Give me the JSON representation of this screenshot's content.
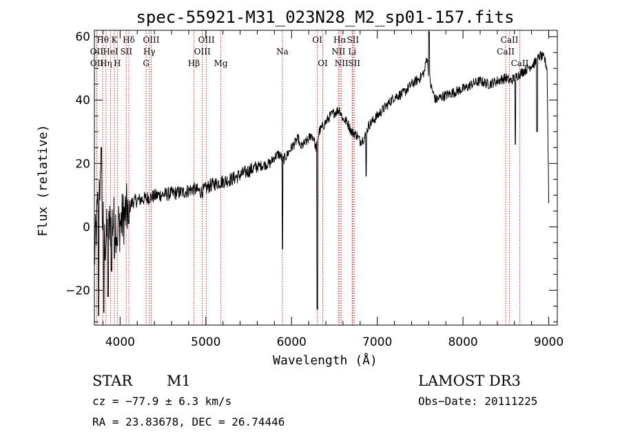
{
  "chart_data": {
    "type": "line",
    "title": "spec-55921-M31_023N28_M2_sp01-157.fits",
    "xlabel": "Wavelength (Å)",
    "ylabel": "Flux (relative)",
    "xlim": [
      3700,
      9100
    ],
    "ylim": [
      -31,
      62
    ],
    "xticks": [
      4000,
      5000,
      6000,
      7000,
      8000,
      9000
    ],
    "yticks": [
      -20,
      0,
      20,
      40,
      60
    ],
    "xtick_labels": [
      "4000",
      "5000",
      "6000",
      "7000",
      "8000",
      "9000"
    ],
    "ytick_labels": [
      "−20",
      "0",
      "20",
      "40",
      "60"
    ],
    "spectrum_anchors": {
      "x": [
        3700,
        3760,
        3820,
        3900,
        3980,
        4060,
        4150,
        4300,
        4450,
        4600,
        4750,
        4850,
        4950,
        5050,
        5150,
        5300,
        5450,
        5600,
        5750,
        5800,
        5850,
        5880,
        5900,
        5930,
        6000,
        6080,
        6100,
        6180,
        6230,
        6260,
        6280,
        6300,
        6320,
        6400,
        6450,
        6500,
        6560,
        6600,
        6650,
        6700,
        6760,
        6800,
        6850,
        6900,
        7000,
        7100,
        7200,
        7300,
        7400,
        7500,
        7550,
        7580,
        7600,
        7630,
        7680,
        7750,
        7850,
        7950,
        8050,
        8100,
        8200,
        8300,
        8400,
        8500,
        8550,
        8600,
        8650,
        8700,
        8750,
        8800,
        8850,
        8900,
        8950,
        8980,
        9000
      ],
      "y": [
        -10,
        15,
        -5,
        2,
        0,
        4,
        8,
        9,
        10,
        10.5,
        11,
        12,
        11,
        13,
        14,
        15,
        17,
        19,
        20,
        22,
        23,
        22,
        21,
        22,
        25,
        28,
        25,
        27,
        29,
        28,
        25,
        26,
        30,
        33,
        35,
        36,
        37,
        34,
        33,
        30,
        29,
        27,
        28,
        32,
        35,
        38,
        41,
        42,
        45,
        47,
        49,
        54,
        48,
        44,
        40,
        41,
        42,
        43,
        44,
        45,
        46,
        45,
        46,
        47,
        46,
        47,
        48,
        49,
        50,
        51,
        52,
        54,
        53,
        50,
        8
      ]
    },
    "spectrum_features": [
      {
        "x": 3750,
        "y": -28
      },
      {
        "x": 3780,
        "y": 25
      },
      {
        "x": 3810,
        "y": -27
      },
      {
        "x": 3860,
        "y": -22
      },
      {
        "x": 3900,
        "y": -14
      },
      {
        "x": 3934,
        "y": -10
      },
      {
        "x": 3968,
        "y": -6
      },
      {
        "x": 4101,
        "y": 1
      },
      {
        "x": 5894,
        "y": -7
      },
      {
        "x": 6300,
        "y": -26
      },
      {
        "x": 6870,
        "y": 16
      },
      {
        "x": 7605,
        "y": 62
      },
      {
        "x": 8610,
        "y": 26
      },
      {
        "x": 8865,
        "y": 30
      }
    ],
    "emission_lines": [
      {
        "wave": 3797,
        "label": "Hθ",
        "row": 1
      },
      {
        "wave": 3727,
        "label": "OII",
        "row": 2
      },
      {
        "wave": 3729,
        "label": "OII",
        "row": 3
      },
      {
        "wave": 3835,
        "label": "Hη",
        "row": 3
      },
      {
        "wave": 3889,
        "label": "HeI",
        "row": 2
      },
      {
        "wave": 3934,
        "label": "K",
        "row": 1
      },
      {
        "wave": 3968,
        "label": "H",
        "row": 3
      },
      {
        "wave": 4072,
        "label": "SII",
        "row": 2
      },
      {
        "wave": 4102,
        "label": "Hδ",
        "row": 1
      },
      {
        "wave": 4304,
        "label": "G",
        "row": 3
      },
      {
        "wave": 4341,
        "label": "Hγ",
        "row": 2
      },
      {
        "wave": 4363,
        "label": "OIII",
        "row": 1
      },
      {
        "wave": 4861,
        "label": "Hβ",
        "row": 3
      },
      {
        "wave": 4959,
        "label": "OIII",
        "row": 2
      },
      {
        "wave": 5007,
        "label": "OIII",
        "row": 1
      },
      {
        "wave": 5175,
        "label": "Mg",
        "row": 3
      },
      {
        "wave": 5893,
        "label": "Na",
        "row": 2
      },
      {
        "wave": 6300,
        "label": "OI",
        "row": 1
      },
      {
        "wave": 6364,
        "label": "OI",
        "row": 3
      },
      {
        "wave": 6548,
        "label": "NII",
        "row": 2
      },
      {
        "wave": 6563,
        "label": "Hα",
        "row": 1
      },
      {
        "wave": 6583,
        "label": "NII",
        "row": 3
      },
      {
        "wave": 6708,
        "label": "Li",
        "row": 2
      },
      {
        "wave": 6716,
        "label": "SII",
        "row": 1
      },
      {
        "wave": 6731,
        "label": "SII",
        "row": 3
      },
      {
        "wave": 8498,
        "label": "CaII",
        "row": 2
      },
      {
        "wave": 8542,
        "label": "CaII",
        "row": 1
      },
      {
        "wave": 8662,
        "label": "CaII",
        "row": 3
      }
    ],
    "grid": false
  },
  "info": {
    "object_class": "STAR",
    "subclass": "M1",
    "survey": "LAMOST  DR3",
    "cz": "cz = −77.9 ± 6.3 km/s",
    "obs_date": "Obs−Date: 20111225",
    "coords": "RA =  23.83678, DEC =  26.74446"
  },
  "colors": {
    "spectrum": "#000000",
    "line_marker": "#cc2222",
    "axis": "#000000",
    "background": "#ffffff"
  }
}
